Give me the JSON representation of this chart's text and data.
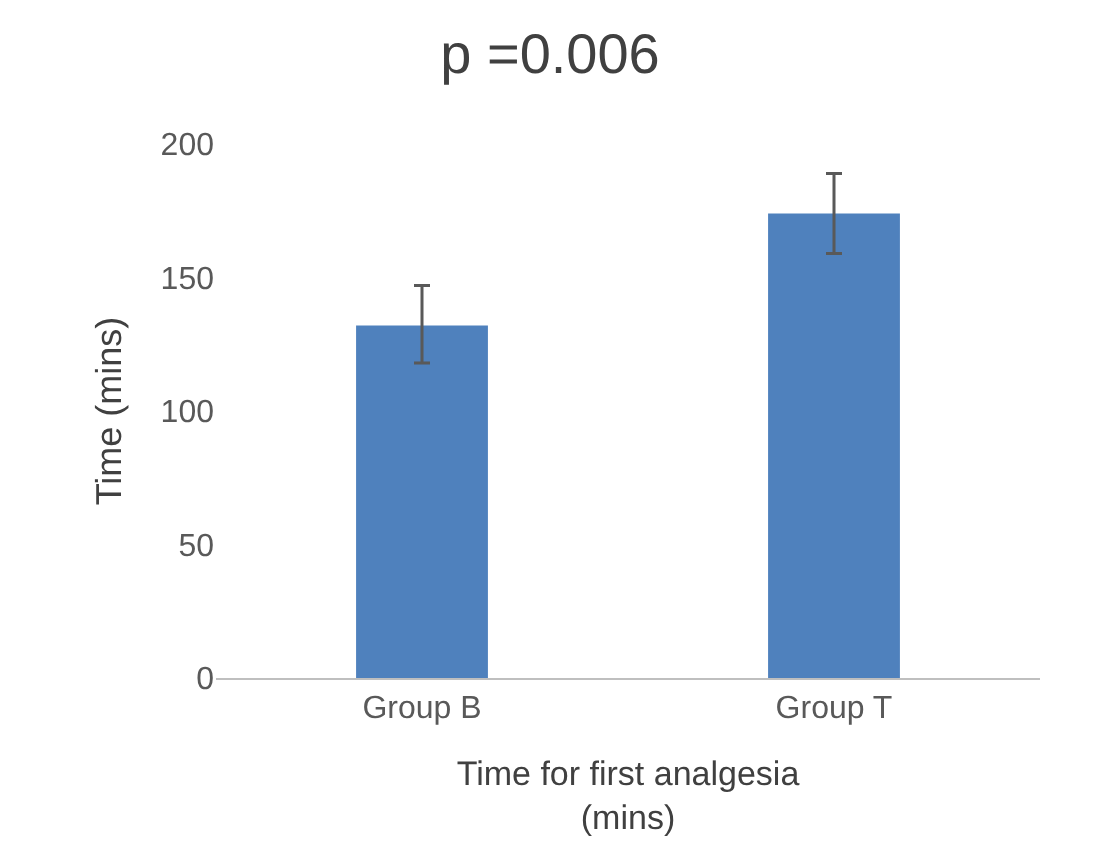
{
  "chart_data": {
    "type": "bar",
    "title": "p =0.006",
    "xlabel": "Time for first analgesia\n(mins)",
    "ylabel": "Time (mins)",
    "categories": [
      "Group B",
      "Group T"
    ],
    "values": [
      132,
      174
    ],
    "color": "#4f81bd",
    "errors": [
      [
        118,
        147
      ],
      [
        159,
        189
      ]
    ],
    "ylim": [
      0,
      200
    ],
    "yticks": [
      0,
      50,
      100,
      150,
      200
    ],
    "grid": false
  }
}
